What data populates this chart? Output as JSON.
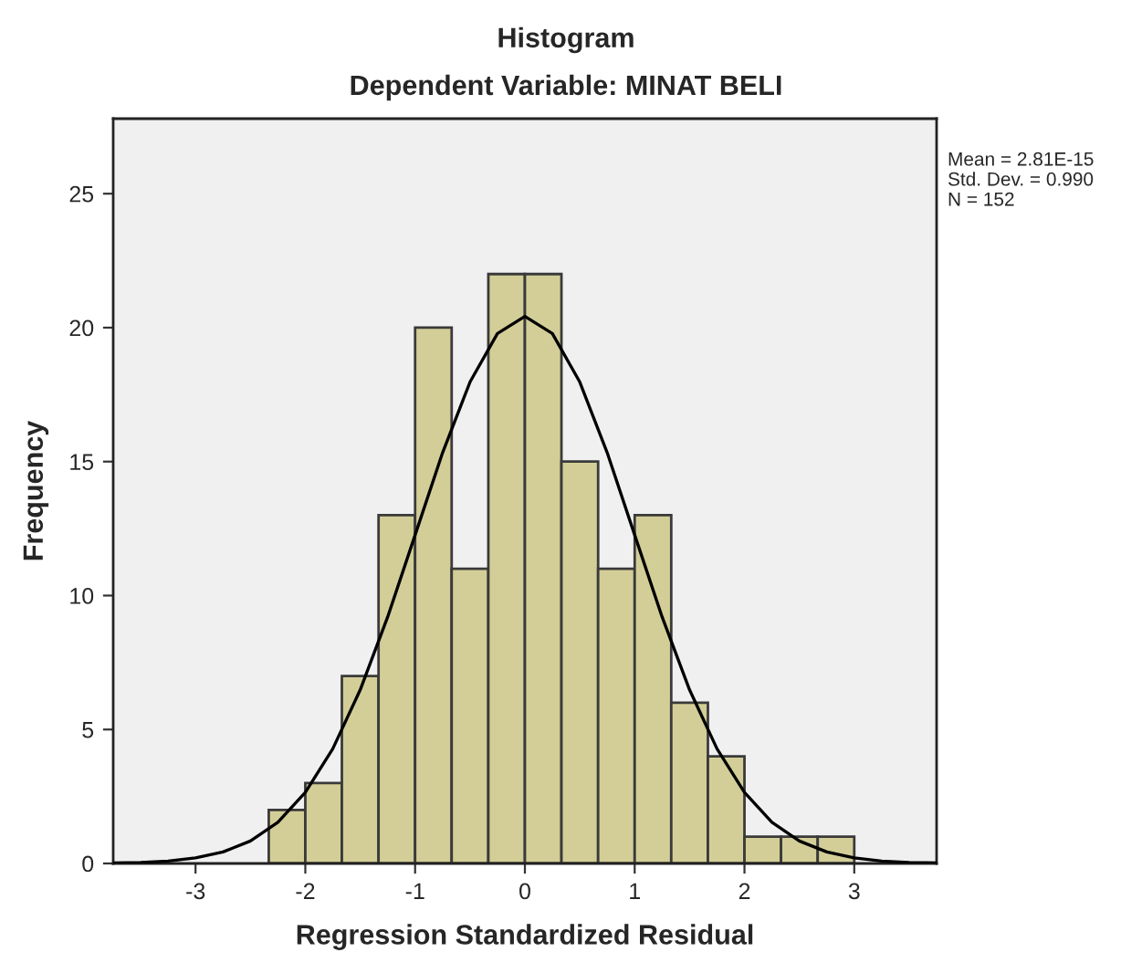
{
  "chart_data": {
    "type": "histogram",
    "title": "Histogram",
    "subtitle": "Dependent Variable: MINAT BELI",
    "xlabel": "Regression Standardized Residual",
    "ylabel": "Frequency",
    "annotations": [
      "Mean = 2.81E-15",
      "Std. Dev. = 0.990",
      "N = 152"
    ],
    "bins": [
      -2.333,
      -2,
      -1.667,
      -1.333,
      -1,
      -0.667,
      -0.333,
      0,
      0.333,
      0.667,
      1,
      1.333,
      1.667,
      2,
      2.333,
      2.667,
      3
    ],
    "series": [
      {
        "color": "#d3ce97",
        "values": [
          2,
          3,
          7,
          13,
          20,
          11,
          22,
          22,
          15,
          11,
          13,
          6,
          4,
          1,
          1,
          1
        ]
      },
      {
        "type": "line",
        "color": "#000000",
        "x": [
          -3.75,
          -3.5,
          -3.25,
          -3,
          -2.75,
          -2.5,
          -2.25,
          -2,
          -1.75,
          -1.5,
          -1.25,
          -1,
          -0.75,
          -0.5,
          -0.25,
          0,
          0.25,
          0.5,
          0.75,
          1,
          1.25,
          1.5,
          1.75,
          2,
          2.25,
          2.5,
          2.75,
          3,
          3.25,
          3.5,
          3.75
        ],
        "values": [
          0.02,
          0.04,
          0.09,
          0.21,
          0.43,
          0.84,
          1.54,
          2.65,
          4.28,
          6.48,
          9.2,
          12.26,
          15.33,
          17.97,
          19.78,
          20.42,
          19.78,
          17.97,
          15.33,
          12.26,
          9.2,
          6.48,
          4.28,
          2.65,
          1.54,
          0.84,
          0.43,
          0.21,
          0.09,
          0.04,
          0.02
        ]
      }
    ],
    "xlim": [
      -3.75,
      3.75
    ],
    "ylim": [
      0,
      27.8
    ],
    "xticks": [
      -3,
      -2,
      -1,
      0,
      1,
      2,
      3
    ],
    "yticks": [
      0,
      5,
      10,
      15,
      20,
      25
    ],
    "grid": false,
    "legend": false
  }
}
